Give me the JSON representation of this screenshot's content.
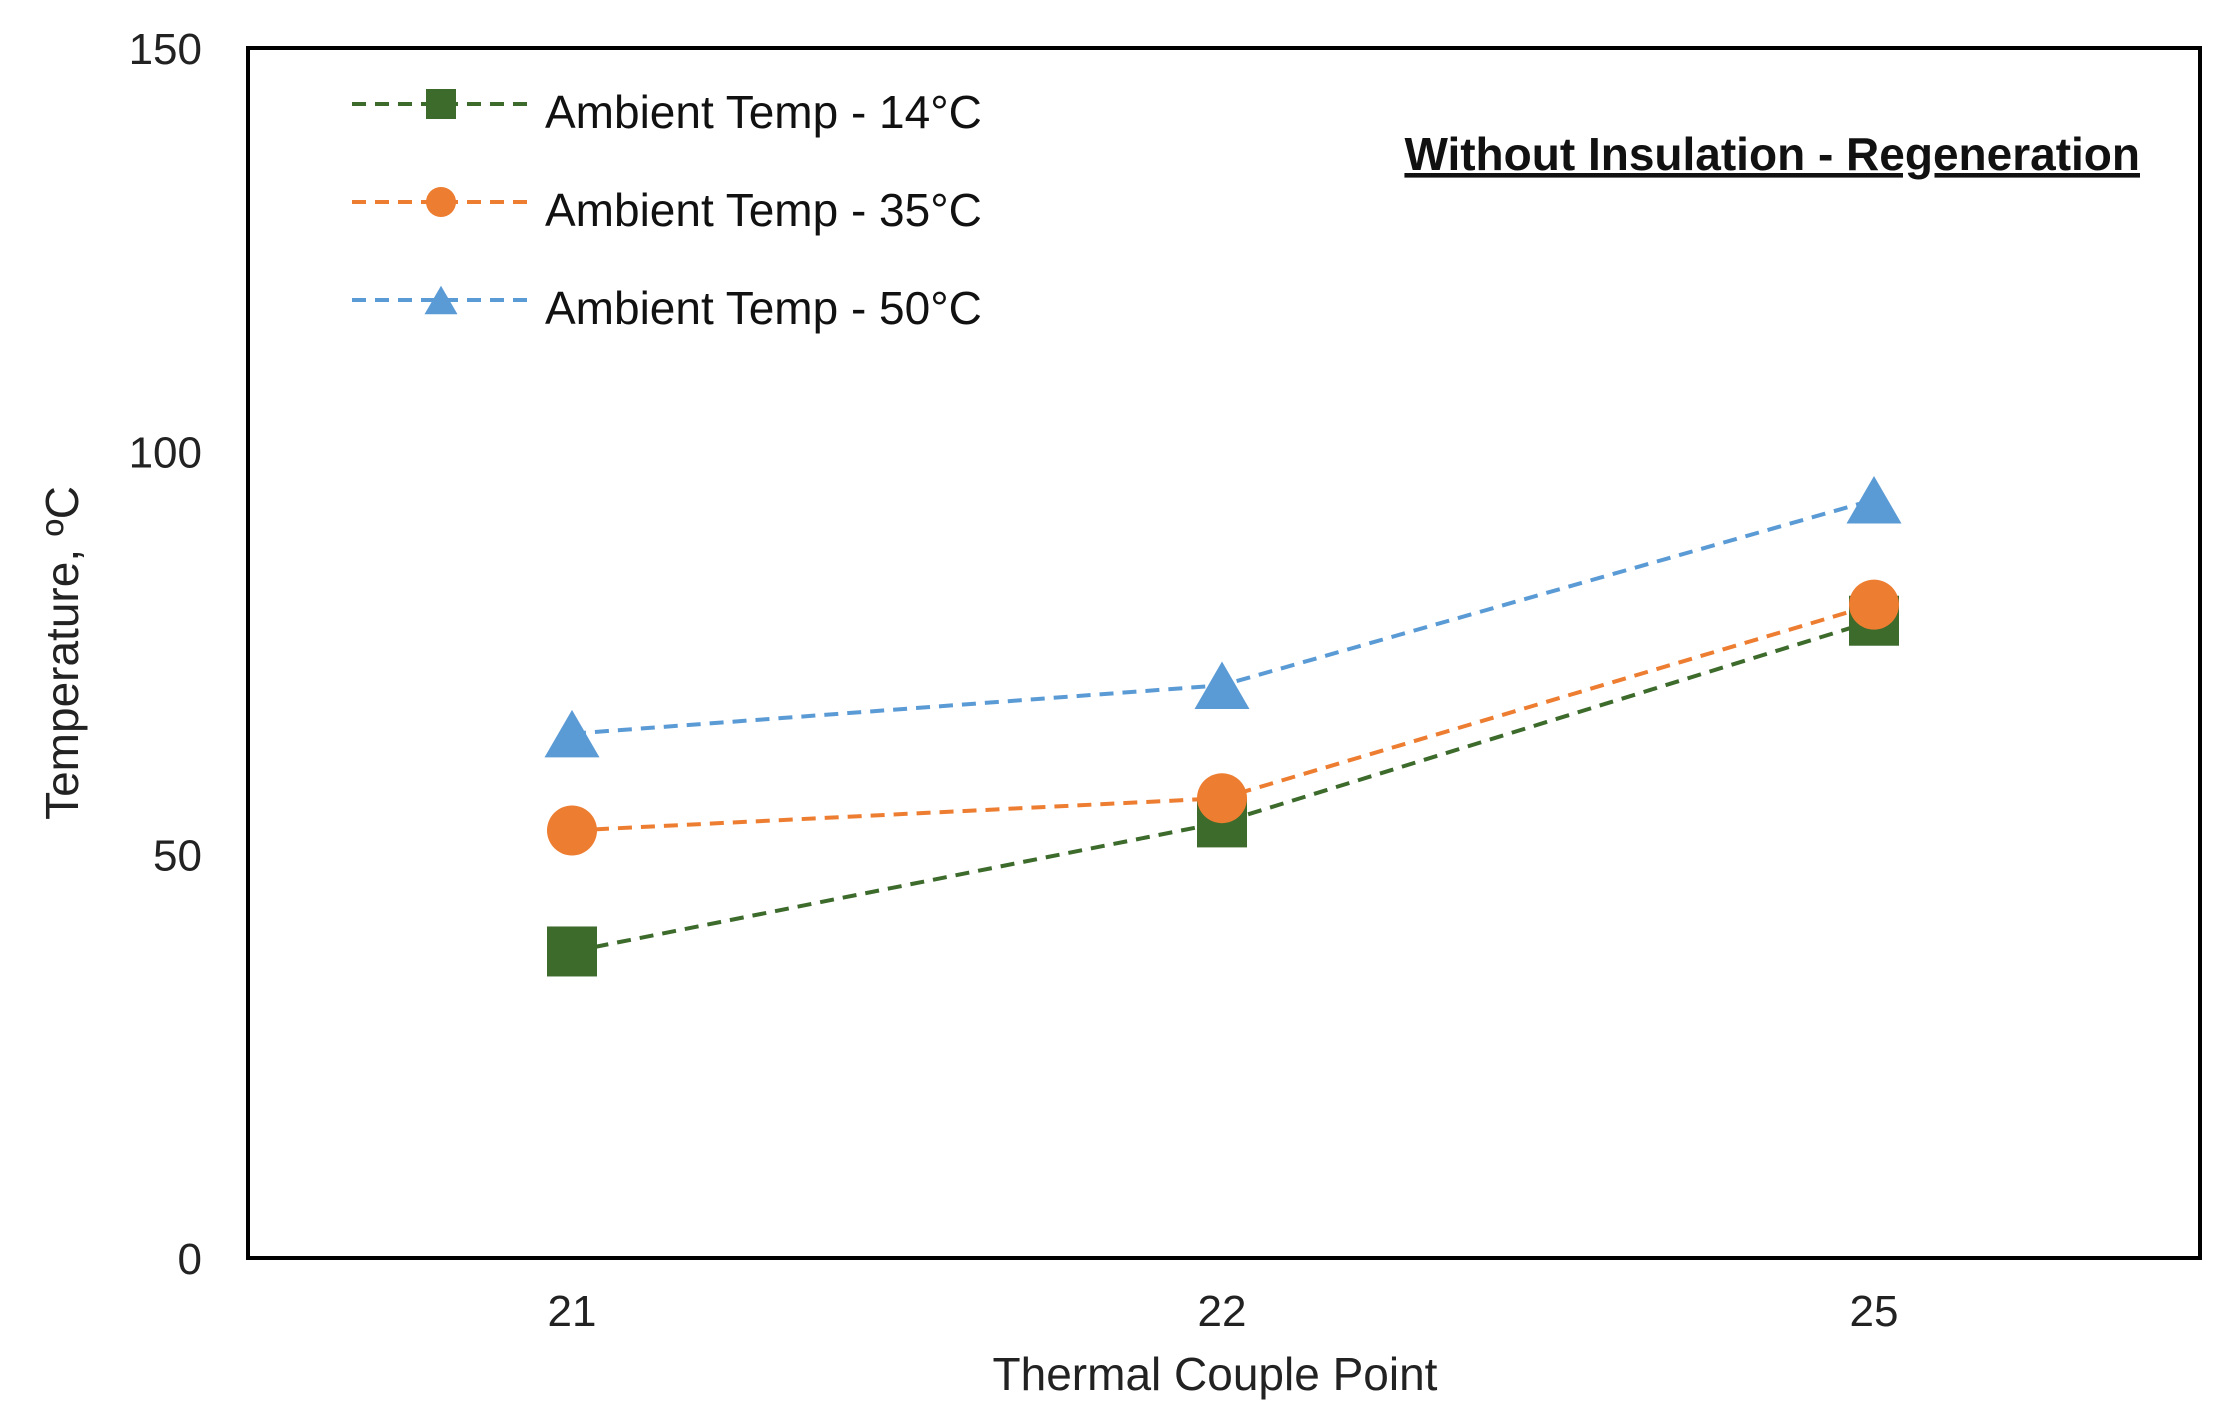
{
  "chart_data": {
    "type": "line",
    "title": "Without Insulation - Regeneration",
    "xlabel": "Thermal Couple Point",
    "ylabel": "Temperature, ºC",
    "categories": [
      "21",
      "22",
      "25"
    ],
    "ylim": [
      0,
      150
    ],
    "yticks": [
      "0",
      "50",
      "100",
      "150"
    ],
    "grid": false,
    "legend_position": "top-left",
    "series": [
      {
        "name": "Ambient Temp - 14°C",
        "values": [
          38,
          54,
          79
        ],
        "color": "#3d6b2c",
        "marker": "square",
        "line_style": "dashed"
      },
      {
        "name": "Ambient Temp - 35°C",
        "values": [
          53,
          57,
          81
        ],
        "color": "#ed7d31",
        "marker": "circle",
        "line_style": "dashed"
      },
      {
        "name": "Ambient Temp - 50°C",
        "values": [
          65,
          71,
          94
        ],
        "color": "#5b9bd5",
        "marker": "triangle",
        "line_style": "dashed"
      }
    ]
  }
}
